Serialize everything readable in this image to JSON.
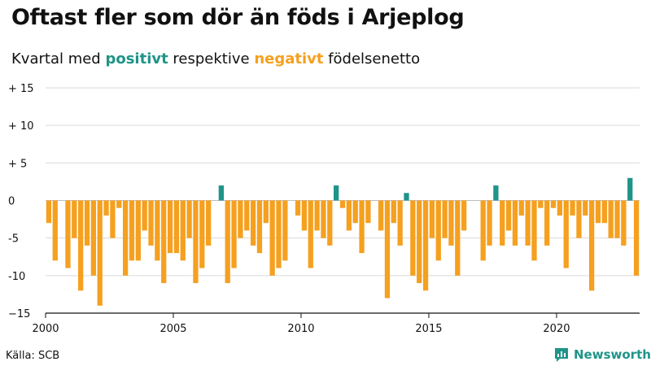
{
  "header": {
    "title": "Oftast fler som dör än föds i Arjeplog",
    "subtitle_prefix": "Kvartal med ",
    "subtitle_pos": "positivt",
    "subtitle_mid": " respektive ",
    "subtitle_neg": "negativt",
    "subtitle_suffix": " födelsenetto"
  },
  "footer": {
    "source": "Källa: SCB",
    "brand": "Newsworthy"
  },
  "colors": {
    "positive": "#1f9488",
    "negative": "#f5a01f",
    "grid": "#d9d9d9",
    "axis": "#111111"
  },
  "chart_data": {
    "type": "bar",
    "title": "Oftast fler som dör än föds i Arjeplog",
    "subtitle": "Kvartal med positivt respektive negativt födelsenetto",
    "xlabel": "",
    "ylabel": "",
    "x_start": 2000.0,
    "x_step": 0.25,
    "xlim": [
      2000,
      2023.25
    ],
    "ylim": [
      -15,
      15
    ],
    "x_ticks": [
      2000,
      2005,
      2010,
      2015,
      2020
    ],
    "x_tick_labels": [
      "2000",
      "2005",
      "2010",
      "2015",
      "2020"
    ],
    "y_ticks": [
      15,
      10,
      5,
      0,
      -5,
      -10,
      -15
    ],
    "y_tick_labels": [
      "+ 15",
      "+ 10",
      "+  5",
      "0",
      "-5",
      "-10",
      "−15"
    ],
    "grid": true,
    "values": [
      -3,
      -8,
      0,
      -9,
      -5,
      -12,
      -6,
      -10,
      -14,
      -2,
      -5,
      -1,
      -10,
      -8,
      -8,
      -4,
      -6,
      -8,
      -11,
      -7,
      -7,
      -8,
      -5,
      -11,
      -9,
      -6,
      0,
      2,
      -11,
      -9,
      -5,
      -4,
      -6,
      -7,
      -3,
      -10,
      -9,
      -8,
      0,
      -2,
      -4,
      -9,
      -4,
      -5,
      -6,
      2,
      -1,
      -4,
      -3,
      -7,
      -3,
      0,
      -4,
      -13,
      -3,
      -6,
      1,
      -10,
      -11,
      -12,
      -5,
      -8,
      -5,
      -6,
      -10,
      -4,
      0,
      0,
      -8,
      -6,
      2,
      -6,
      -4,
      -6,
      -2,
      -6,
      -8,
      -1,
      -6,
      -1,
      -2,
      -9,
      -2,
      -5,
      -2,
      -12,
      -3,
      -3,
      -5,
      -5,
      -6,
      3,
      -10
    ]
  }
}
